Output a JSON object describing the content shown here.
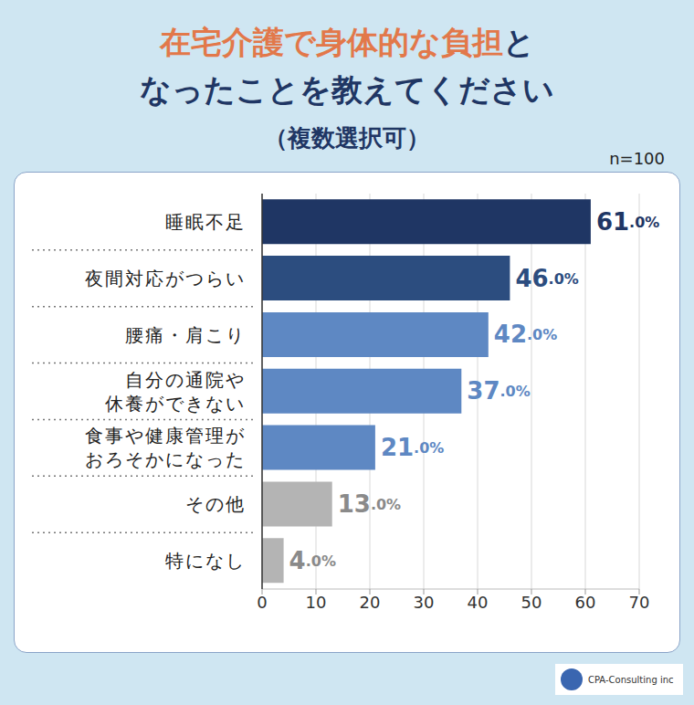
{
  "chart_data": {
    "type": "bar",
    "orientation": "horizontal",
    "title": "在宅介護で身体的な負担となったことを教えてください",
    "subtitle": "（複数選択可）",
    "annotations": [
      "n=100",
      "CPA-Consulting inc"
    ],
    "categories": [
      "睡眠不足",
      "夜間対応がつらい",
      "腰痛・肩こり",
      "自分の通院や休養ができない",
      "食事や健康管理がおろそかになった",
      "その他",
      "特になし"
    ],
    "values": [
      61,
      46,
      42,
      37,
      21,
      13,
      4
    ],
    "value_labels": [
      "61.0%",
      "46.0%",
      "42.0%",
      "37.0%",
      "21.0%",
      "13.0%",
      "4.0%"
    ],
    "colors": [
      "#1f3664",
      "#2c4d7f",
      "#5e88c3",
      "#5e88c3",
      "#5e88c3",
      "#b4b4b4",
      "#b4b4b4"
    ],
    "xlim": [
      0,
      70
    ],
    "xticks": [
      0,
      10,
      20,
      30,
      40,
      50,
      60,
      70
    ],
    "grid": true,
    "data_labels": true
  }
}
